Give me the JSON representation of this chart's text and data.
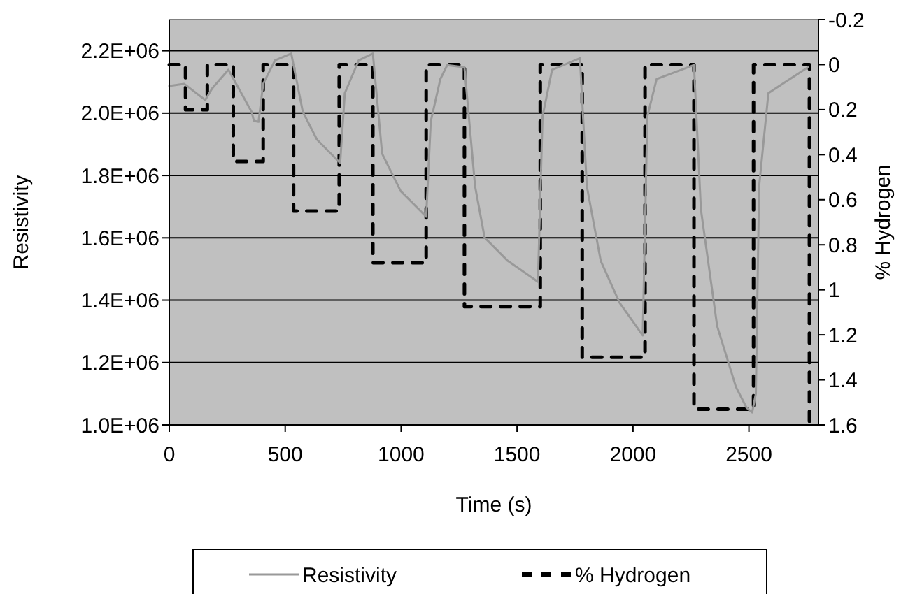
{
  "chart_data": {
    "type": "line",
    "xlabel": "Time (s)",
    "ylabel": "Resistivity",
    "y2label": "% Hydrogen",
    "xlim": [
      0,
      2800
    ],
    "xticks": [
      0,
      500,
      1000,
      1500,
      2000,
      2500
    ],
    "ylim": [
      1000000,
      2300000
    ],
    "yticks": [
      {
        "value": 1000000,
        "label": "1.0E+06"
      },
      {
        "value": 1200000,
        "label": "1.2E+06"
      },
      {
        "value": 1400000,
        "label": "1.4E+06"
      },
      {
        "value": 1600000,
        "label": "1.6E+06"
      },
      {
        "value": 1800000,
        "label": "1.8E+06"
      },
      {
        "value": 2000000,
        "label": "2.0E+06"
      },
      {
        "value": 2200000,
        "label": "2.2E+06"
      }
    ],
    "y2lim": [
      1.6,
      -0.2
    ],
    "y2ticks": [
      -0.2,
      0,
      0.2,
      0.4,
      0.6,
      0.8,
      1.0,
      1.2,
      1.4,
      1.6
    ],
    "grid": "y",
    "legend": "bottom",
    "series": [
      {
        "name": "Resistivity",
        "color": "#999999",
        "line_style": "solid",
        "x": [
          0,
          64,
          155,
          185,
          255,
          355,
          365,
          385,
          405,
          456,
          526,
          576,
          637,
          737,
          757,
          817,
          878,
          918,
          998,
          1108,
          1128,
          1169,
          1199,
          1273,
          1319,
          1360,
          1460,
          1590,
          1610,
          1651,
          1771,
          1801,
          1861,
          1942,
          2042,
          2062,
          2102,
          2263,
          2293,
          2363,
          2444,
          2490,
          2514,
          2530,
          2544,
          2584,
          2645,
          2755
        ],
        "values": [
          2087000,
          2094000,
          2042000,
          2079000,
          2139000,
          2004000,
          1975000,
          1972000,
          2094000,
          2169000,
          2191000,
          2004000,
          1915000,
          1840000,
          2064000,
          2169000,
          2191000,
          1870000,
          1750000,
          1668000,
          1974000,
          2109000,
          2154000,
          2147000,
          1765000,
          1601000,
          1526000,
          1459000,
          1990000,
          2139000,
          2176000,
          1765000,
          1526000,
          1392000,
          1287000,
          1990000,
          2109000,
          2154000,
          1691000,
          1317000,
          1122000,
          1055000,
          1040000,
          1100000,
          1765000,
          2064000,
          2094000,
          2147000
        ]
      },
      {
        "name": "% Hydrogen",
        "color": "#000000",
        "axis": "y2",
        "line_style": "dashed",
        "x": [
          0,
          70,
          70,
          164,
          164,
          276,
          276,
          405,
          405,
          536,
          536,
          733,
          733,
          878,
          878,
          1108,
          1108,
          1273,
          1273,
          1600,
          1600,
          1781,
          1781,
          2052,
          2052,
          2263,
          2263,
          2520,
          2520,
          2761,
          2761
        ],
        "values": [
          0,
          0,
          0.2,
          0.2,
          0,
          0,
          0.43,
          0.43,
          0,
          0,
          0.65,
          0.65,
          0,
          0,
          0.88,
          0.88,
          0,
          0,
          1.075,
          1.075,
          0,
          0,
          1.3,
          1.3,
          0,
          0,
          1.53,
          1.53,
          0,
          0,
          1.6
        ]
      }
    ]
  }
}
